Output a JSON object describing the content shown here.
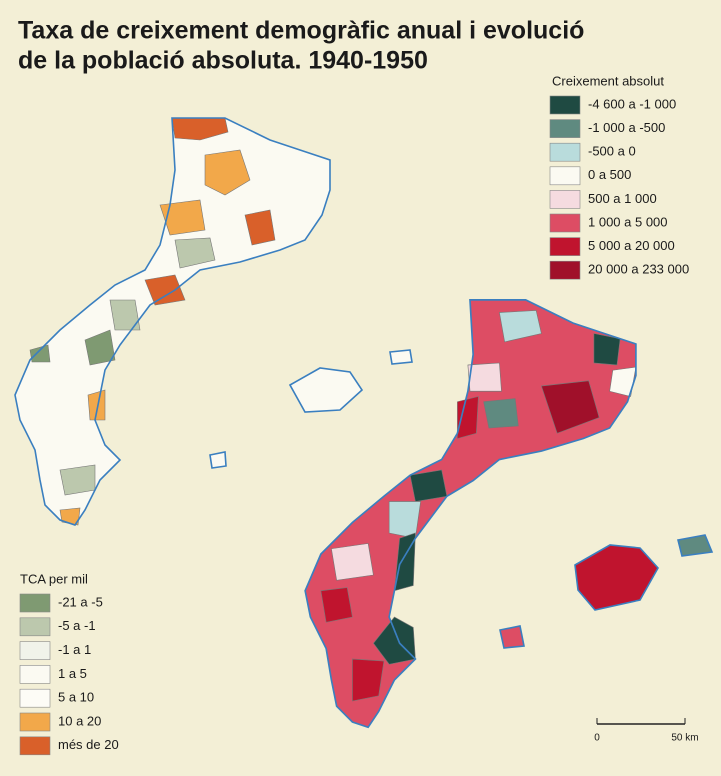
{
  "title": {
    "lines": [
      "Taxa de creixement demogràfic anual i evolució",
      "de la població absoluta. 1940-1950"
    ]
  },
  "legend_absolute": {
    "title": "Creixement absolut",
    "items": [
      {
        "label": "-4 600 a -1 000",
        "color": "#1f4a42"
      },
      {
        "label": "-1 000 a -500",
        "color": "#5f8a80"
      },
      {
        "label": "-500 a 0",
        "color": "#b9dcdc"
      },
      {
        "label": "0 a 500",
        "color": "#fbfaf2"
      },
      {
        "label": "500 a 1 000",
        "color": "#f5dbe0"
      },
      {
        "label": "1 000 a 5 000",
        "color": "#dd4d64"
      },
      {
        "label": "5 000 a 20 000",
        "color": "#c0142e"
      },
      {
        "label": "20 000 a 233 000",
        "color": "#a0102a"
      }
    ]
  },
  "legend_tca": {
    "title": "TCA per mil",
    "items": [
      {
        "label": "-21 a -5",
        "color": "#7f9a72"
      },
      {
        "label": "-5 a -1",
        "color": "#bcc8ad"
      },
      {
        "label": "-1 a 1",
        "color": "#f1f3ea"
      },
      {
        "label": "1 a 5",
        "color": "#fbfaf2"
      },
      {
        "label": "5 a 10",
        "color": "#fdfcf6"
      },
      {
        "label": "10 a 20",
        "color": "#f2a84a"
      },
      {
        "label": "més de 20",
        "color": "#d9602a"
      }
    ]
  },
  "scale": {
    "labels": [
      "0",
      "50 km"
    ]
  }
}
